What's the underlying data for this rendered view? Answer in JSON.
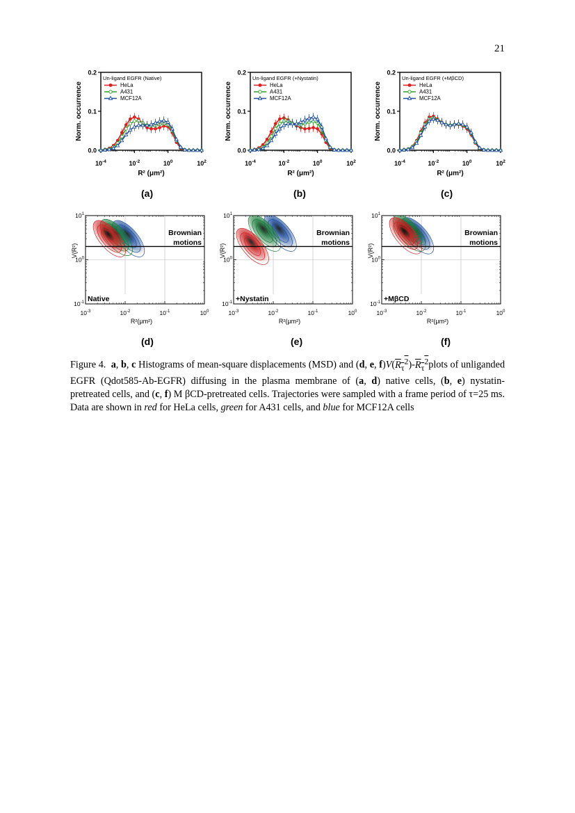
{
  "page_number": "21",
  "histogram_panels": [
    {
      "label": "(a)",
      "legend_title": "Un-ligand EGFR (Native)"
    },
    {
      "label": "(b)",
      "legend_title": "Un-ligand EGFR (+Nystatin)"
    },
    {
      "label": "(c)",
      "legend_title": "Un-ligand EGFR (+MβCD)"
    }
  ],
  "density_panels": [
    {
      "label": "(d)",
      "condition": "Native"
    },
    {
      "label": "(e)",
      "condition": "+Nystatin"
    },
    {
      "label": "(f)",
      "condition": "+MβCD"
    }
  ],
  "brownian_text": [
    "Brownian",
    "motions"
  ],
  "caption": {
    "fig": "Figure 4.",
    "a": "a",
    "b": "b",
    "c": "c",
    "d": "d",
    "e": "e",
    "f": "f",
    "t1": "Histograms of mean-square displacements (MSD) and (",
    "t2": "plots of unliganded EGFR (Qdot585-Ab-EGFR) diffusing in the plasma membrane of (",
    "t3": "native cells, (",
    "t4": "nystatin-pretreated cells, and (",
    "t5": "M βCD-pretreated cells. Trajectories were sampled with a frame period of τ=25 ms. Data are shown in",
    "red": "red",
    "t6": "for HeLa cells,",
    "green": "green",
    "t7": "for A431 cells, and",
    "blue": "blue",
    "t8": "for MCF12A cells"
  },
  "chart_data": [
    {
      "type": "line",
      "title": "Un-ligand EGFR (Native)",
      "xlabel": "R² (μm²)",
      "ylabel": "Norm. occurrence",
      "xscale": "log",
      "xlim": [
        0.0001,
        100
      ],
      "ylim": [
        0,
        0.2
      ],
      "yticks": [
        "0.0",
        "0.1",
        "0.2"
      ],
      "xticks": [
        "10-4",
        "10-2",
        "100",
        "102"
      ],
      "legend_position": "top-left",
      "x": [
        0.0001,
        0.000178,
        0.000316,
        0.000562,
        0.001,
        0.00178,
        0.00316,
        0.00562,
        0.01,
        0.0178,
        0.0316,
        0.0562,
        0.1,
        0.178,
        0.316,
        0.562,
        1,
        1.78,
        3.16,
        5.62,
        10,
        17.8,
        31.6,
        56.2,
        100
      ],
      "series": [
        {
          "name": "HeLa",
          "color": "#e41a1c",
          "marker": "circle",
          "values": [
            0,
            0.002,
            0.005,
            0.012,
            0.025,
            0.045,
            0.065,
            0.08,
            0.085,
            0.08,
            0.068,
            0.058,
            0.055,
            0.055,
            0.058,
            0.062,
            0.06,
            0.045,
            0.02,
            0.005,
            0.001,
            0,
            0,
            0,
            0
          ]
        },
        {
          "name": "A431",
          "color": "#33a02c",
          "marker": "open-circle",
          "values": [
            0,
            0.001,
            0.003,
            0.008,
            0.018,
            0.035,
            0.055,
            0.068,
            0.075,
            0.075,
            0.07,
            0.064,
            0.062,
            0.063,
            0.066,
            0.068,
            0.065,
            0.05,
            0.025,
            0.007,
            0.001,
            0,
            0,
            0,
            0
          ]
        },
        {
          "name": "MCF12A",
          "color": "#1f4e9c",
          "marker": "open-triangle",
          "values": [
            0,
            0.001,
            0.002,
            0.005,
            0.012,
            0.025,
            0.04,
            0.052,
            0.06,
            0.064,
            0.064,
            0.064,
            0.066,
            0.07,
            0.074,
            0.076,
            0.072,
            0.055,
            0.028,
            0.008,
            0.001,
            0,
            0,
            0,
            0
          ]
        }
      ]
    },
    {
      "type": "line",
      "title": "Un-ligand EGFR (+Nystatin)",
      "xlabel": "R² (μm²)",
      "ylabel": "Norm. occurrence",
      "xscale": "log",
      "xlim": [
        0.0001,
        100
      ],
      "ylim": [
        0,
        0.2
      ],
      "yticks": [
        "0.0",
        "0.1",
        "0.2"
      ],
      "xticks": [
        "10-4",
        "10-2",
        "100",
        "102"
      ],
      "legend_position": "top-left",
      "x": [
        0.0001,
        0.000178,
        0.000316,
        0.000562,
        0.001,
        0.00178,
        0.00316,
        0.00562,
        0.01,
        0.0178,
        0.0316,
        0.0562,
        0.1,
        0.178,
        0.316,
        0.562,
        1,
        1.78,
        3.16,
        5.62,
        10,
        17.8,
        31.6,
        56.2,
        100
      ],
      "series": [
        {
          "name": "HeLa",
          "color": "#e41a1c",
          "marker": "circle",
          "values": [
            0,
            0.002,
            0.006,
            0.014,
            0.028,
            0.048,
            0.068,
            0.08,
            0.083,
            0.078,
            0.07,
            0.062,
            0.058,
            0.055,
            0.056,
            0.058,
            0.055,
            0.042,
            0.02,
            0.005,
            0.001,
            0,
            0,
            0,
            0
          ]
        },
        {
          "name": "A431",
          "color": "#33a02c",
          "marker": "open-circle",
          "values": [
            0,
            0.001,
            0.003,
            0.008,
            0.018,
            0.036,
            0.055,
            0.068,
            0.074,
            0.074,
            0.07,
            0.066,
            0.065,
            0.068,
            0.072,
            0.074,
            0.07,
            0.052,
            0.026,
            0.007,
            0.001,
            0,
            0,
            0,
            0
          ]
        },
        {
          "name": "MCF12A",
          "color": "#1f4e9c",
          "marker": "open-triangle",
          "values": [
            0,
            0.001,
            0.002,
            0.005,
            0.012,
            0.025,
            0.042,
            0.055,
            0.064,
            0.068,
            0.068,
            0.068,
            0.072,
            0.078,
            0.082,
            0.085,
            0.08,
            0.06,
            0.03,
            0.008,
            0.001,
            0,
            0,
            0,
            0
          ]
        }
      ]
    },
    {
      "type": "line",
      "title": "Un-ligand EGFR (+MβCD)",
      "xlabel": "R² (μm²)",
      "ylabel": "Norm. occurrence",
      "xscale": "log",
      "xlim": [
        0.0001,
        100
      ],
      "ylim": [
        0,
        0.2
      ],
      "yticks": [
        "0.0",
        "0.1",
        "0.2"
      ],
      "xticks": [
        "10-4",
        "10-2",
        "100",
        "102"
      ],
      "legend_position": "top-left",
      "x": [
        0.0001,
        0.000178,
        0.000316,
        0.000562,
        0.001,
        0.00178,
        0.00316,
        0.00562,
        0.01,
        0.0178,
        0.0316,
        0.0562,
        0.1,
        0.178,
        0.316,
        0.562,
        1,
        1.78,
        3.16,
        5.62,
        10,
        17.8,
        31.6,
        56.2,
        100
      ],
      "series": [
        {
          "name": "HeLa",
          "color": "#e41a1c",
          "marker": "circle",
          "values": [
            0,
            0.001,
            0.003,
            0.01,
            0.025,
            0.048,
            0.07,
            0.085,
            0.087,
            0.08,
            0.072,
            0.066,
            0.064,
            0.066,
            0.066,
            0.062,
            0.055,
            0.04,
            0.018,
            0.004,
            0.001,
            0,
            0,
            0,
            0
          ]
        },
        {
          "name": "A431",
          "color": "#33a02c",
          "marker": "open-circle",
          "values": [
            0,
            0.001,
            0.003,
            0.009,
            0.022,
            0.044,
            0.066,
            0.08,
            0.083,
            0.078,
            0.071,
            0.066,
            0.064,
            0.066,
            0.067,
            0.064,
            0.058,
            0.043,
            0.02,
            0.005,
            0.001,
            0,
            0,
            0,
            0
          ]
        },
        {
          "name": "MCF12A",
          "color": "#1f4e9c",
          "marker": "open-triangle",
          "values": [
            0,
            0.001,
            0.002,
            0.007,
            0.018,
            0.038,
            0.06,
            0.075,
            0.08,
            0.077,
            0.071,
            0.066,
            0.064,
            0.066,
            0.068,
            0.066,
            0.06,
            0.045,
            0.022,
            0.006,
            0.001,
            0,
            0,
            0,
            0
          ]
        }
      ]
    },
    {
      "type": "heatmap",
      "xlabel": "R²(μm²)",
      "ylabel": "V(R²)",
      "xscale": "log",
      "yscale": "log",
      "xlim": [
        0.001,
        1
      ],
      "ylim": [
        0.1,
        10
      ],
      "xticks": [
        "10-3",
        "10-2",
        "10-1",
        "100"
      ],
      "yticks": [
        "10-1",
        "100",
        "101"
      ],
      "annotation": "Native",
      "series": [
        {
          "name": "HeLa",
          "color": "#cc2222",
          "center": [
            0.004,
            3
          ]
        },
        {
          "name": "A431",
          "color": "#1a7a3a",
          "center": [
            0.006,
            3.2
          ]
        },
        {
          "name": "MCF12A",
          "color": "#1f4e9c",
          "center": [
            0.012,
            3
          ]
        }
      ]
    },
    {
      "type": "heatmap",
      "xlabel": "R²(μm²)",
      "ylabel": "V(R²)",
      "xscale": "log",
      "yscale": "log",
      "xlim": [
        0.001,
        1
      ],
      "ylim": [
        0.1,
        10
      ],
      "xticks": [
        "10-3",
        "10-2",
        "10-1",
        "100"
      ],
      "yticks": [
        "10-1",
        "100",
        "101"
      ],
      "annotation": "+Nystatin",
      "series": [
        {
          "name": "HeLa",
          "color": "#cc2222",
          "center": [
            0.003,
            2
          ]
        },
        {
          "name": "A431",
          "color": "#1a7a3a",
          "center": [
            0.006,
            4
          ]
        },
        {
          "name": "MCF12A",
          "color": "#1f4e9c",
          "center": [
            0.015,
            4
          ]
        }
      ]
    },
    {
      "type": "heatmap",
      "xlabel": "R²(μm²)",
      "ylabel": "V(R²)",
      "xscale": "log",
      "yscale": "log",
      "xlim": [
        0.001,
        1
      ],
      "ylim": [
        0.1,
        10
      ],
      "xticks": [
        "10-3",
        "10-2",
        "10-1",
        "100"
      ],
      "yticks": [
        "10-1",
        "100",
        "101"
      ],
      "annotation": "+MβCD",
      "series": [
        {
          "name": "HeLa",
          "color": "#cc2222",
          "center": [
            0.004,
            3.5
          ]
        },
        {
          "name": "A431",
          "color": "#1a7a3a",
          "center": [
            0.005,
            4
          ]
        },
        {
          "name": "MCF12A",
          "color": "#1f4e9c",
          "center": [
            0.008,
            3.5
          ]
        }
      ]
    }
  ]
}
